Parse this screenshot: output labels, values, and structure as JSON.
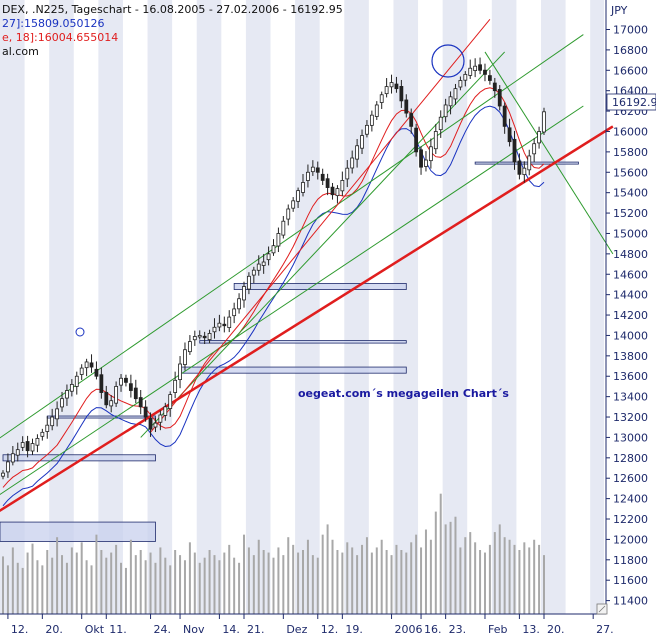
{
  "chart_data": {
    "type": "candlestick",
    "header": {
      "line1": "DEX, .N225, Tageschart - 16.08.2005 - 27.02.2006 - 16192.95",
      "line2": "27]:15809.050126",
      "line3": "e, 18]:16004.655014",
      "line4": "al.com"
    },
    "currency_label": "JPY",
    "last_value_label": "16192.9",
    "annotation": "oegeat.com´s megageilen Chart´s",
    "ylim": [
      11350,
      17150
    ],
    "y_ticks": [
      11400,
      11600,
      11800,
      12000,
      12200,
      12400,
      12600,
      12800,
      13000,
      13200,
      13400,
      13600,
      13800,
      14000,
      14200,
      14400,
      14600,
      14800,
      15000,
      15200,
      15400,
      15600,
      15800,
      16000,
      16200,
      16400,
      16600,
      16800,
      17000
    ],
    "x_ticks": [
      {
        "label": "12.",
        "i": 1
      },
      {
        "label": "20.",
        "i": 8
      },
      {
        "label": "Okt",
        "i": 16
      },
      {
        "label": "11.",
        "i": 21
      },
      {
        "label": "24.",
        "i": 30
      },
      {
        "label": "Nov",
        "i": 36
      },
      {
        "label": "14.",
        "i": 44
      },
      {
        "label": "21.",
        "i": 49
      },
      {
        "label": "Dez",
        "i": 57
      },
      {
        "label": "12.",
        "i": 64
      },
      {
        "label": "19.",
        "i": 69
      },
      {
        "label": "2006",
        "i": 79
      },
      {
        "label": "16.",
        "i": 85
      },
      {
        "label": "23.",
        "i": 90
      },
      {
        "label": "Feb",
        "i": 98
      },
      {
        "label": "13.",
        "i": 105
      },
      {
        "label": "20.",
        "i": 110
      },
      {
        "label": "27.",
        "i": 120
      }
    ],
    "close": [
      12650,
      12760,
      12840,
      12880,
      12950,
      12870,
      12940,
      12990,
      13050,
      13120,
      13200,
      13280,
      13380,
      13460,
      13520,
      13600,
      13680,
      13740,
      13690,
      13600,
      13440,
      13320,
      13360,
      13500,
      13580,
      13540,
      13460,
      13380,
      13300,
      13200,
      13080,
      13140,
      13220,
      13300,
      13420,
      13560,
      13720,
      13860,
      13940,
      13990,
      14000,
      13980,
      14020,
      14080,
      14120,
      14100,
      14180,
      14260,
      14360,
      14480,
      14580,
      14640,
      14700,
      14720,
      14800,
      14880,
      15000,
      15120,
      15240,
      15320,
      15420,
      15500,
      15600,
      15650,
      15600,
      15520,
      15450,
      15380,
      15440,
      15520,
      15640,
      15740,
      15860,
      15960,
      16060,
      16160,
      16260,
      16360,
      16440,
      16480,
      16420,
      16300,
      16180,
      16050,
      15800,
      15650,
      15720,
      15850,
      16000,
      16140,
      16260,
      16340,
      16420,
      16500,
      16560,
      16620,
      16640,
      16600,
      16560,
      16500,
      16400,
      16250,
      16050,
      15900,
      15700,
      15580,
      15640,
      15760,
      15880,
      16000,
      16192.95
    ],
    "volume_range": [
      0,
      100
    ],
    "volume": [
      45,
      38,
      52,
      40,
      36,
      48,
      55,
      42,
      38,
      50,
      44,
      60,
      46,
      40,
      52,
      48,
      56,
      42,
      38,
      62,
      50,
      44,
      48,
      54,
      40,
      36,
      58,
      46,
      50,
      42,
      48,
      40,
      52,
      44,
      38,
      50,
      46,
      42,
      56,
      48,
      40,
      44,
      50,
      46,
      42,
      48,
      54,
      44,
      40,
      62,
      52,
      46,
      58,
      50,
      48,
      44,
      52,
      46,
      60,
      54,
      48,
      50,
      58,
      46,
      44,
      62,
      70,
      58,
      50,
      48,
      56,
      52,
      46,
      54,
      60,
      48,
      52,
      58,
      50,
      46,
      54,
      50,
      48,
      56,
      62,
      52,
      66,
      58,
      80,
      94,
      70,
      72,
      76,
      52,
      60,
      64,
      56,
      50,
      48,
      54,
      64,
      70,
      60,
      58,
      54,
      50,
      56,
      52,
      58,
      54,
      46
    ],
    "trendlines": [
      {
        "name": "green-channel-upper",
        "color": "#2e9a2e",
        "from": [
          -5,
          12850
        ],
        "to": [
          118,
          16950
        ]
      },
      {
        "name": "green-channel-lower",
        "color": "#2e9a2e",
        "from": [
          -5,
          12300
        ],
        "to": [
          118,
          16250
        ]
      },
      {
        "name": "green-fan-steep",
        "color": "#2e9a2e",
        "from": [
          28,
          13000
        ],
        "to": [
          102,
          16780
        ]
      },
      {
        "name": "green-decline",
        "color": "#2e9a2e",
        "from": [
          98,
          16780
        ],
        "to": [
          124,
          14800
        ]
      },
      {
        "name": "red-support-thick",
        "color": "#e01e1e",
        "from": [
          -5,
          12150
        ],
        "to": [
          124,
          16050
        ]
      },
      {
        "name": "red-fan",
        "color": "#e01e1e",
        "from": [
          30,
          13050
        ],
        "to": [
          99,
          17100
        ]
      }
    ],
    "moving_averages": [
      {
        "name": "ma-red",
        "color": "#e01e1e",
        "offset": -140
      },
      {
        "name": "ma-blue",
        "color": "#1a33c0",
        "offset": -320
      }
    ],
    "zones": [
      {
        "name": "zone-1",
        "from": -2,
        "to": 31,
        "low": 11980,
        "high": 12170
      },
      {
        "name": "zone-2",
        "from": 0,
        "to": 31,
        "low": 12770,
        "high": 12830
      },
      {
        "name": "zone-3",
        "from": 36,
        "to": 82,
        "low": 13630,
        "high": 13690
      },
      {
        "name": "zone-4",
        "from": 40,
        "to": 82,
        "low": 13925,
        "high": 13950
      },
      {
        "name": "zone-5",
        "from": 47,
        "to": 82,
        "low": 14450,
        "high": 14510
      },
      {
        "name": "line-1",
        "from": 9,
        "to": 31,
        "low": 13190,
        "high": 13210
      },
      {
        "name": "line-2",
        "from": 96,
        "to": 117,
        "low": 15680,
        "high": 15700
      }
    ]
  }
}
